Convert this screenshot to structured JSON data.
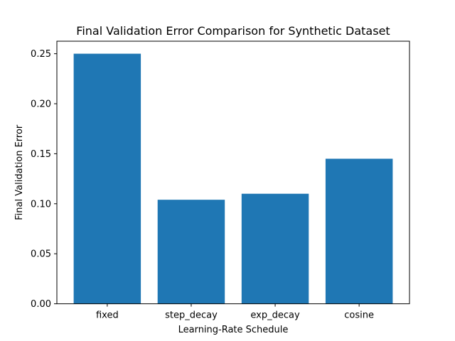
{
  "chart_data": {
    "type": "bar",
    "title": "Final Validation Error Comparison for Synthetic Dataset",
    "xlabel": "Learning-Rate Schedule",
    "ylabel": "Final Validation Error",
    "categories": [
      "fixed",
      "step_decay",
      "exp_decay",
      "cosine"
    ],
    "values": [
      0.25,
      0.104,
      0.11,
      0.145
    ],
    "ylim": [
      0,
      0.2625
    ],
    "yticks": [
      0.0,
      0.05,
      0.1,
      0.15,
      0.2,
      0.25
    ],
    "ytick_labels": [
      "0.00",
      "0.05",
      "0.10",
      "0.15",
      "0.20",
      "0.25"
    ],
    "bar_color": "#1f77b4",
    "grid": false,
    "legend": "none"
  }
}
